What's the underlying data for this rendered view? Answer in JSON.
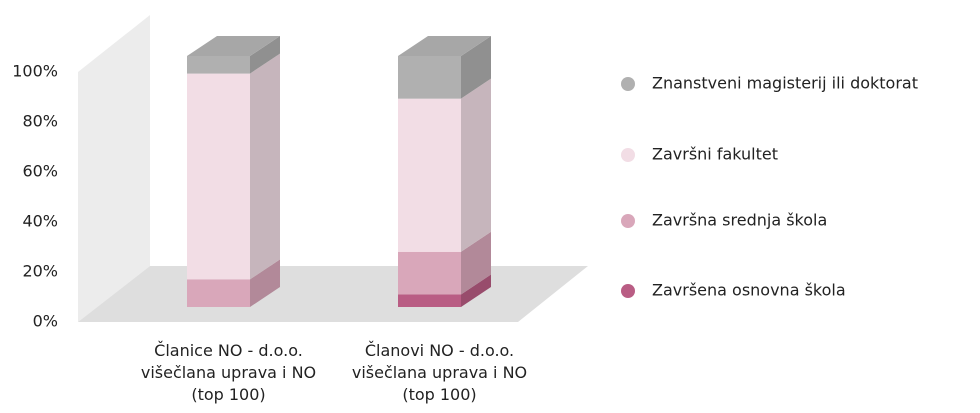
{
  "chart_data": {
    "type": "bar3d_stacked",
    "categories": [
      "Članice NO - d.o.o. višečlana uprava i NO (top 100)",
      "Članovi NO - d.o.o. višečlana uprava i NO (top 100)"
    ],
    "series": [
      {
        "name": "Završena osnovna škola",
        "color": "#b95d84",
        "values": [
          0,
          5
        ]
      },
      {
        "name": "Završna srednja škola",
        "color": "#d9a7ba",
        "values": [
          11,
          17
        ]
      },
      {
        "name": "Završni fakultet",
        "color": "#f2dde5",
        "values": [
          82,
          61
        ]
      },
      {
        "name": "Znanstveni magisterij ili doktorat",
        "color": "#b0b0b0",
        "values": [
          7,
          17
        ]
      }
    ],
    "ylim": [
      0,
      100
    ],
    "yticks": [
      {
        "value": 0,
        "label": "0%"
      },
      {
        "value": 20,
        "label": "20%"
      },
      {
        "value": 40,
        "label": "40%"
      },
      {
        "value": 60,
        "label": "60%"
      },
      {
        "value": 80,
        "label": "80%"
      },
      {
        "value": 100,
        "label": "100%"
      }
    ],
    "legend": "right"
  }
}
